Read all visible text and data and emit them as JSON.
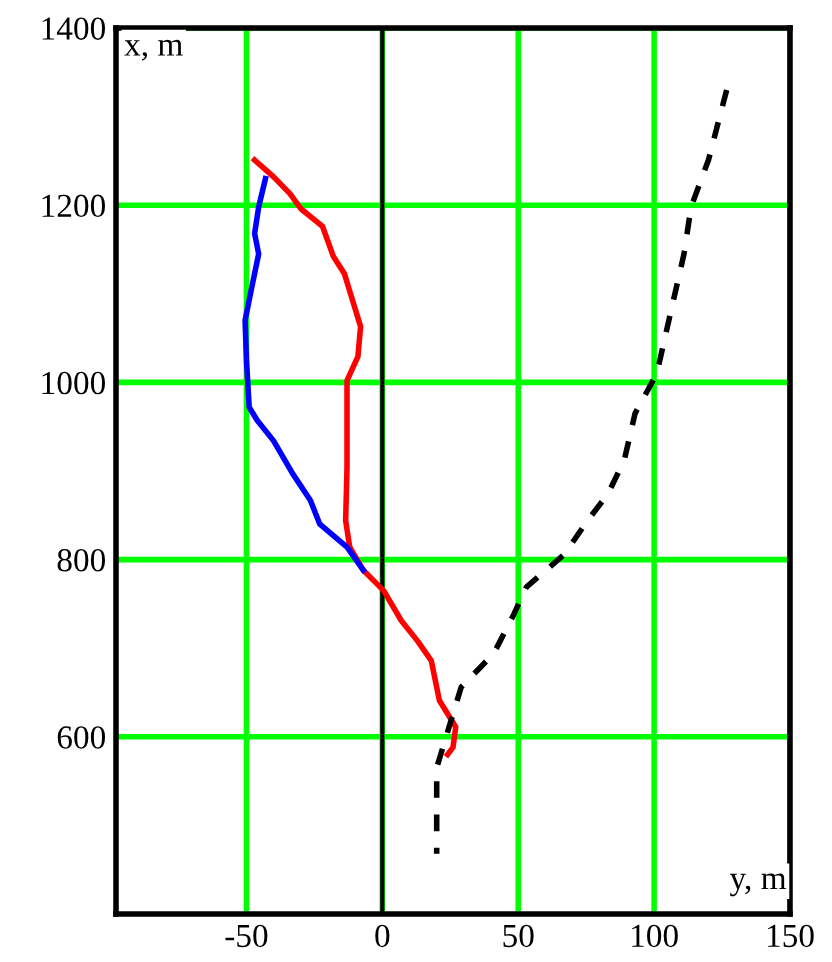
{
  "chart_data": {
    "type": "line",
    "xlabel": "y, m",
    "ylabel": "x, m",
    "xlim": [
      -98,
      150
    ],
    "ylim": [
      400,
      1400
    ],
    "xticks": [
      -50,
      0,
      50,
      100,
      150
    ],
    "yticks": [
      600,
      800,
      1000,
      1200,
      1400
    ],
    "grid": true,
    "marker": "none",
    "ref_lines": [
      {
        "axis": "x",
        "value": 0,
        "color": "#000000"
      }
    ],
    "series": [
      {
        "color": "#ff0000",
        "line_style": "solid",
        "x": [
          -47,
          -40,
          -34,
          -30,
          -22,
          -18,
          -14,
          -11,
          -8,
          -9,
          -13,
          -13,
          -13,
          -13.5,
          -12,
          -7,
          0.5,
          7,
          13,
          18,
          21,
          27,
          26,
          24
        ],
        "values": [
          1251,
          1232,
          1213,
          1196,
          1176,
          1142,
          1123,
          1093,
          1063,
          1029,
          1002,
          950,
          904,
          844,
          814,
          788,
          765,
          731,
          708,
          686,
          641,
          611,
          588,
          580
        ]
      },
      {
        "color": "#0000ff",
        "line_style": "solid",
        "x": [
          -43,
          -45.5,
          -47,
          -45.5,
          -48,
          -50.5,
          -50,
          -49,
          -46,
          -40,
          -33,
          -26.5,
          -23,
          -13,
          -7
        ],
        "values": [
          1230,
          1198,
          1168,
          1145,
          1108,
          1070,
          1025,
          972,
          957,
          934,
          897,
          867,
          840,
          814,
          788
        ]
      },
      {
        "color": "#000000",
        "line_style": "dashed",
        "x": [
          126.7,
          120,
          113.6,
          111,
          106,
          101,
          93,
          89,
          83,
          75.5,
          67,
          53,
          48.5,
          41,
          29,
          20,
          20,
          20
        ],
        "values": [
          1330,
          1251,
          1198,
          1145,
          1078,
          1010,
          965,
          912,
          874,
          844,
          806,
          769,
          739,
          694,
          656,
          565,
          535,
          468
        ]
      }
    ]
  }
}
